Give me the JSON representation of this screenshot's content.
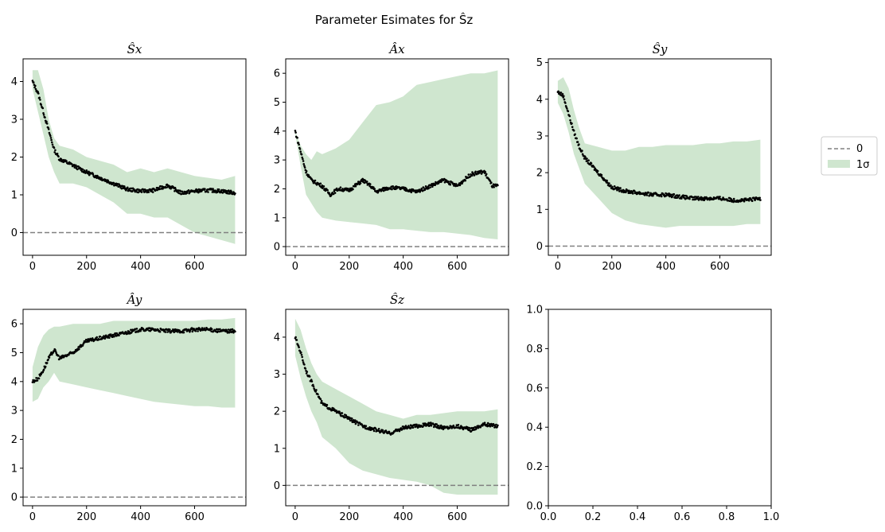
{
  "figure": {
    "suptitle": "Parameter Esimates for Ŝz",
    "legend": {
      "placement": "right",
      "entries": [
        "0",
        "1σ"
      ]
    }
  },
  "colors": {
    "band": "#cfe6cf",
    "points": "#000000",
    "zero_line": "#808080",
    "axes": "#000000"
  },
  "chart_data": [
    {
      "type": "line",
      "title": "Ŝx",
      "title_base": "S",
      "title_sub": "x",
      "xlim": [
        -35,
        790
      ],
      "ylim": [
        -0.6,
        4.6
      ],
      "xticks": [
        0,
        200,
        400,
        600
      ],
      "yticks": [
        0,
        1,
        2,
        3,
        4
      ],
      "hline": 0,
      "mean": {
        "x": [
          0,
          20,
          40,
          60,
          80,
          100,
          150,
          200,
          250,
          300,
          350,
          400,
          450,
          500,
          550,
          600,
          650,
          700,
          750
        ],
        "y": [
          4.0,
          3.7,
          3.2,
          2.7,
          2.2,
          1.95,
          1.78,
          1.6,
          1.45,
          1.3,
          1.15,
          1.1,
          1.12,
          1.25,
          1.05,
          1.1,
          1.12,
          1.1,
          1.05
        ]
      },
      "band": {
        "x": [
          0,
          20,
          40,
          60,
          80,
          100,
          150,
          200,
          250,
          300,
          350,
          400,
          450,
          500,
          550,
          600,
          650,
          700,
          750
        ],
        "upper": [
          4.3,
          4.3,
          3.8,
          3.0,
          2.5,
          2.3,
          2.2,
          2.0,
          1.9,
          1.8,
          1.6,
          1.7,
          1.6,
          1.7,
          1.6,
          1.5,
          1.45,
          1.4,
          1.5
        ],
        "lower": [
          3.8,
          3.2,
          2.6,
          2.0,
          1.6,
          1.3,
          1.3,
          1.2,
          1.0,
          0.8,
          0.5,
          0.5,
          0.4,
          0.4,
          0.2,
          0.0,
          -0.1,
          -0.2,
          -0.3
        ]
      }
    },
    {
      "type": "line",
      "title": "Âx",
      "title_base": "A",
      "title_sub": "x",
      "xlim": [
        -35,
        790
      ],
      "ylim": [
        -0.3,
        6.5
      ],
      "xticks": [
        0,
        200,
        400,
        600
      ],
      "yticks": [
        0,
        1,
        2,
        3,
        4,
        5,
        6
      ],
      "hline": 0,
      "mean": {
        "x": [
          0,
          20,
          40,
          60,
          80,
          100,
          130,
          160,
          200,
          250,
          280,
          300,
          350,
          400,
          450,
          500,
          550,
          600,
          650,
          700,
          730,
          750
        ],
        "y": [
          4.0,
          3.3,
          2.6,
          2.3,
          2.2,
          2.1,
          1.8,
          2.0,
          1.95,
          2.3,
          2.1,
          1.9,
          2.05,
          2.0,
          1.9,
          2.1,
          2.3,
          2.1,
          2.5,
          2.6,
          2.1,
          2.1
        ]
      },
      "band": {
        "x": [
          0,
          20,
          40,
          60,
          80,
          100,
          150,
          200,
          250,
          300,
          350,
          400,
          450,
          500,
          550,
          600,
          650,
          700,
          750
        ],
        "upper": [
          4.0,
          3.5,
          3.2,
          3.0,
          3.3,
          3.2,
          3.4,
          3.7,
          4.3,
          4.9,
          5.0,
          5.2,
          5.6,
          5.7,
          5.8,
          5.9,
          6.0,
          6.0,
          6.1
        ],
        "lower": [
          3.9,
          2.8,
          1.8,
          1.5,
          1.2,
          1.0,
          0.9,
          0.85,
          0.8,
          0.75,
          0.6,
          0.6,
          0.55,
          0.5,
          0.5,
          0.45,
          0.4,
          0.3,
          0.25
        ]
      }
    },
    {
      "type": "line",
      "title": "Ŝy",
      "title_base": "S",
      "title_sub": "y",
      "xlim": [
        -35,
        790
      ],
      "ylim": [
        -0.25,
        5.1
      ],
      "xticks": [
        0,
        200,
        400,
        600
      ],
      "yticks": [
        0,
        1,
        2,
        3,
        4,
        5
      ],
      "hline": 0,
      "mean": {
        "x": [
          0,
          20,
          40,
          60,
          80,
          100,
          150,
          200,
          250,
          300,
          350,
          400,
          450,
          500,
          550,
          600,
          650,
          700,
          750
        ],
        "y": [
          4.2,
          4.1,
          3.6,
          3.1,
          2.7,
          2.4,
          2.0,
          1.6,
          1.5,
          1.45,
          1.4,
          1.4,
          1.35,
          1.3,
          1.3,
          1.3,
          1.25,
          1.25,
          1.3
        ]
      },
      "band": {
        "x": [
          0,
          20,
          40,
          60,
          80,
          100,
          150,
          200,
          250,
          300,
          350,
          400,
          450,
          500,
          550,
          600,
          650,
          700,
          750
        ],
        "upper": [
          4.5,
          4.6,
          4.3,
          3.7,
          3.2,
          2.8,
          2.7,
          2.6,
          2.6,
          2.7,
          2.7,
          2.75,
          2.75,
          2.75,
          2.8,
          2.8,
          2.85,
          2.85,
          2.9
        ],
        "lower": [
          3.9,
          3.6,
          3.1,
          2.5,
          2.1,
          1.7,
          1.3,
          0.9,
          0.7,
          0.6,
          0.55,
          0.5,
          0.55,
          0.55,
          0.55,
          0.55,
          0.55,
          0.6,
          0.6
        ]
      }
    },
    {
      "type": "line",
      "title": "Ây",
      "title_base": "A",
      "title_sub": "y",
      "xlim": [
        -35,
        790
      ],
      "ylim": [
        -0.3,
        6.5
      ],
      "xticks": [
        0,
        200,
        400,
        600
      ],
      "yticks": [
        0,
        1,
        2,
        3,
        4,
        5,
        6
      ],
      "hline": 0,
      "mean": {
        "x": [
          0,
          20,
          40,
          60,
          80,
          100,
          150,
          200,
          250,
          300,
          350,
          400,
          450,
          500,
          550,
          600,
          650,
          700,
          750
        ],
        "y": [
          4.0,
          4.1,
          4.4,
          4.8,
          5.1,
          4.8,
          5.0,
          5.4,
          5.5,
          5.6,
          5.7,
          5.8,
          5.8,
          5.75,
          5.75,
          5.8,
          5.8,
          5.75,
          5.75
        ]
      },
      "band": {
        "x": [
          0,
          20,
          40,
          60,
          80,
          100,
          150,
          200,
          250,
          300,
          350,
          400,
          450,
          500,
          550,
          600,
          650,
          700,
          750
        ],
        "upper": [
          4.5,
          5.2,
          5.6,
          5.8,
          5.9,
          5.9,
          6.0,
          6.0,
          6.0,
          6.1,
          6.1,
          6.1,
          6.1,
          6.1,
          6.1,
          6.1,
          6.15,
          6.15,
          6.2
        ],
        "lower": [
          3.3,
          3.4,
          3.8,
          4.0,
          4.3,
          4.0,
          3.9,
          3.8,
          3.7,
          3.6,
          3.5,
          3.4,
          3.3,
          3.25,
          3.2,
          3.15,
          3.15,
          3.1,
          3.1
        ]
      }
    },
    {
      "type": "line",
      "title": "Ŝz",
      "title_base": "S",
      "title_sub": "z",
      "xlim": [
        -35,
        790
      ],
      "ylim": [
        -0.55,
        4.75
      ],
      "xticks": [
        0,
        200,
        400,
        600
      ],
      "yticks": [
        0,
        1,
        2,
        3,
        4
      ],
      "hline": 0,
      "mean": {
        "x": [
          0,
          20,
          40,
          60,
          80,
          100,
          150,
          200,
          250,
          300,
          350,
          400,
          450,
          500,
          550,
          600,
          650,
          700,
          750
        ],
        "y": [
          4.0,
          3.6,
          3.1,
          2.8,
          2.5,
          2.2,
          2.0,
          1.8,
          1.6,
          1.5,
          1.4,
          1.55,
          1.6,
          1.65,
          1.55,
          1.6,
          1.5,
          1.65,
          1.6
        ]
      },
      "band": {
        "x": [
          0,
          20,
          40,
          60,
          80,
          100,
          150,
          200,
          250,
          300,
          350,
          400,
          450,
          500,
          550,
          600,
          650,
          700,
          750
        ],
        "upper": [
          4.5,
          4.2,
          3.7,
          3.3,
          3.0,
          2.8,
          2.6,
          2.4,
          2.2,
          2.0,
          1.9,
          1.8,
          1.9,
          1.9,
          1.95,
          2.0,
          2.0,
          2.0,
          2.05
        ],
        "lower": [
          3.5,
          2.9,
          2.4,
          2.0,
          1.7,
          1.3,
          1.0,
          0.6,
          0.4,
          0.3,
          0.2,
          0.15,
          0.1,
          0.0,
          -0.2,
          -0.25,
          -0.25,
          -0.25,
          -0.25
        ]
      }
    },
    {
      "type": "line",
      "title": "",
      "empty": true,
      "xlim": [
        0,
        1
      ],
      "ylim": [
        0,
        1
      ],
      "xticks": [
        0.0,
        0.2,
        0.4,
        0.6,
        0.8,
        1.0
      ],
      "yticks": [
        0.0,
        0.2,
        0.4,
        0.6,
        0.8,
        1.0
      ],
      "xtick_labels": [
        "0.0",
        "0.2",
        "0.4",
        "0.6",
        "0.8",
        "1.0"
      ],
      "ytick_labels": [
        "0.0",
        "0.2",
        "0.4",
        "0.6",
        "0.8",
        "1.0"
      ]
    }
  ]
}
